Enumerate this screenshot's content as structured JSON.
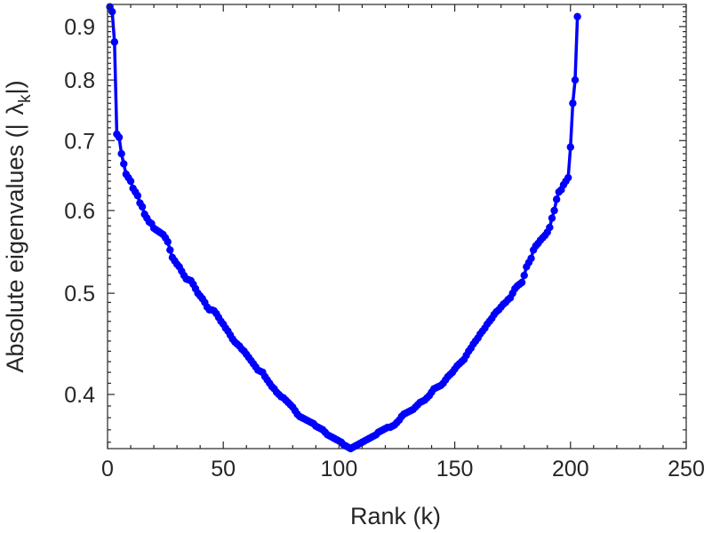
{
  "chart_data": {
    "type": "line",
    "xlabel": "Rank (k)",
    "ylabel_prefix": "Absolute eigenvalues (|",
    "ylabel_symbol": "λ",
    "ylabel_subscript": "k",
    "ylabel_suffix": "|)",
    "x_ticks": [
      "0",
      "50",
      "100",
      "150",
      "200",
      "250"
    ],
    "y_ticks": [
      "0.4",
      "0.5",
      "0.6",
      "0.7",
      "0.8",
      "0.9"
    ],
    "xlim": [
      0,
      250
    ],
    "ylim": [
      0.355,
      0.945
    ],
    "y_scale": "log",
    "grid": false,
    "color": "#0000ff",
    "series": [
      {
        "values": [
          [
            1,
            0.94
          ],
          [
            2,
            0.93
          ],
          [
            3,
            0.87
          ],
          [
            4,
            0.71
          ],
          [
            5,
            0.705
          ],
          [
            6,
            0.68
          ],
          [
            7,
            0.665
          ],
          [
            8,
            0.65
          ],
          [
            9,
            0.645
          ],
          [
            10,
            0.64
          ],
          [
            11,
            0.63
          ],
          [
            12,
            0.625
          ],
          [
            13,
            0.62
          ],
          [
            14,
            0.61
          ],
          [
            15,
            0.605
          ],
          [
            16,
            0.595
          ],
          [
            17,
            0.59
          ],
          [
            18,
            0.585
          ],
          [
            19,
            0.583
          ],
          [
            20,
            0.577
          ],
          [
            21,
            0.575
          ],
          [
            22,
            0.573
          ],
          [
            23,
            0.571
          ],
          [
            24,
            0.569
          ],
          [
            25,
            0.565
          ],
          [
            26,
            0.56
          ],
          [
            27,
            0.55
          ],
          [
            28,
            0.541
          ],
          [
            29,
            0.537
          ],
          [
            30,
            0.533
          ],
          [
            31,
            0.53
          ],
          [
            32,
            0.525
          ],
          [
            33,
            0.52
          ],
          [
            34,
            0.516
          ],
          [
            35,
            0.515
          ],
          [
            36,
            0.514
          ],
          [
            37,
            0.51
          ],
          [
            38,
            0.505
          ],
          [
            39,
            0.5
          ],
          [
            40,
            0.497
          ],
          [
            41,
            0.494
          ],
          [
            42,
            0.49
          ],
          [
            43,
            0.485
          ],
          [
            44,
            0.482
          ],
          [
            45,
            0.482
          ],
          [
            46,
            0.481
          ],
          [
            47,
            0.478
          ],
          [
            48,
            0.474
          ],
          [
            49,
            0.47
          ],
          [
            50,
            0.467
          ],
          [
            51,
            0.463
          ],
          [
            52,
            0.46
          ],
          [
            53,
            0.456
          ],
          [
            54,
            0.452
          ],
          [
            55,
            0.449
          ],
          [
            56,
            0.447
          ],
          [
            57,
            0.445
          ],
          [
            58,
            0.442
          ],
          [
            59,
            0.44
          ],
          [
            60,
            0.437
          ],
          [
            61,
            0.434
          ],
          [
            62,
            0.431
          ],
          [
            63,
            0.428
          ],
          [
            64,
            0.425
          ],
          [
            65,
            0.422
          ],
          [
            66,
            0.421
          ],
          [
            67,
            0.42
          ],
          [
            68,
            0.416
          ],
          [
            69,
            0.413
          ],
          [
            70,
            0.41
          ],
          [
            71,
            0.407
          ],
          [
            72,
            0.405
          ],
          [
            73,
            0.402
          ],
          [
            74,
            0.4
          ],
          [
            75,
            0.398
          ],
          [
            76,
            0.397
          ],
          [
            77,
            0.395
          ],
          [
            78,
            0.393
          ],
          [
            79,
            0.391
          ],
          [
            80,
            0.389
          ],
          [
            81,
            0.386
          ],
          [
            82,
            0.383
          ],
          [
            83,
            0.381
          ],
          [
            84,
            0.38
          ],
          [
            85,
            0.379
          ],
          [
            86,
            0.378
          ],
          [
            87,
            0.377
          ],
          [
            88,
            0.376
          ],
          [
            89,
            0.375
          ],
          [
            90,
            0.373
          ],
          [
            91,
            0.372
          ],
          [
            92,
            0.371
          ],
          [
            93,
            0.37
          ],
          [
            94,
            0.368
          ],
          [
            95,
            0.366
          ],
          [
            96,
            0.365
          ],
          [
            97,
            0.364
          ],
          [
            98,
            0.363
          ],
          [
            99,
            0.362
          ],
          [
            100,
            0.361
          ],
          [
            101,
            0.36
          ],
          [
            102,
            0.358
          ],
          [
            103,
            0.357
          ],
          [
            104,
            0.356
          ],
          [
            105,
            0.355
          ],
          [
            106,
            0.356
          ],
          [
            107,
            0.357
          ],
          [
            108,
            0.358
          ],
          [
            109,
            0.359
          ],
          [
            110,
            0.36
          ],
          [
            111,
            0.361
          ],
          [
            112,
            0.362
          ],
          [
            113,
            0.363
          ],
          [
            114,
            0.364
          ],
          [
            115,
            0.365
          ],
          [
            116,
            0.366
          ],
          [
            117,
            0.368
          ],
          [
            118,
            0.369
          ],
          [
            119,
            0.37
          ],
          [
            120,
            0.371
          ],
          [
            121,
            0.372
          ],
          [
            122,
            0.372
          ],
          [
            123,
            0.373
          ],
          [
            124,
            0.374
          ],
          [
            125,
            0.376
          ],
          [
            126,
            0.378
          ],
          [
            127,
            0.381
          ],
          [
            128,
            0.383
          ],
          [
            129,
            0.384
          ],
          [
            130,
            0.385
          ],
          [
            131,
            0.386
          ],
          [
            132,
            0.387
          ],
          [
            133,
            0.389
          ],
          [
            134,
            0.391
          ],
          [
            135,
            0.393
          ],
          [
            136,
            0.394
          ],
          [
            137,
            0.395
          ],
          [
            138,
            0.397
          ],
          [
            139,
            0.399
          ],
          [
            140,
            0.402
          ],
          [
            141,
            0.405
          ],
          [
            142,
            0.406
          ],
          [
            143,
            0.407
          ],
          [
            144,
            0.408
          ],
          [
            145,
            0.41
          ],
          [
            146,
            0.413
          ],
          [
            147,
            0.416
          ],
          [
            148,
            0.418
          ],
          [
            149,
            0.42
          ],
          [
            150,
            0.423
          ],
          [
            151,
            0.426
          ],
          [
            152,
            0.428
          ],
          [
            153,
            0.43
          ],
          [
            154,
            0.432
          ],
          [
            155,
            0.436
          ],
          [
            156,
            0.44
          ],
          [
            157,
            0.443
          ],
          [
            158,
            0.447
          ],
          [
            159,
            0.45
          ],
          [
            160,
            0.453
          ],
          [
            161,
            0.457
          ],
          [
            162,
            0.46
          ],
          [
            163,
            0.463
          ],
          [
            164,
            0.467
          ],
          [
            165,
            0.47
          ],
          [
            166,
            0.473
          ],
          [
            167,
            0.477
          ],
          [
            168,
            0.48
          ],
          [
            169,
            0.482
          ],
          [
            170,
            0.485
          ],
          [
            171,
            0.488
          ],
          [
            172,
            0.49
          ],
          [
            173,
            0.493
          ],
          [
            174,
            0.495
          ],
          [
            175,
            0.5
          ],
          [
            176,
            0.505
          ],
          [
            177,
            0.508
          ],
          [
            178,
            0.51
          ],
          [
            179,
            0.512
          ],
          [
            180,
            0.52
          ],
          [
            181,
            0.53
          ],
          [
            182,
            0.535
          ],
          [
            183,
            0.54
          ],
          [
            184,
            0.55
          ],
          [
            185,
            0.555
          ],
          [
            186,
            0.558
          ],
          [
            187,
            0.562
          ],
          [
            188,
            0.565
          ],
          [
            189,
            0.568
          ],
          [
            190,
            0.572
          ],
          [
            191,
            0.578
          ],
          [
            192,
            0.59
          ],
          [
            193,
            0.6
          ],
          [
            194,
            0.615
          ],
          [
            195,
            0.625
          ],
          [
            196,
            0.628
          ],
          [
            197,
            0.635
          ],
          [
            198,
            0.64
          ],
          [
            199,
            0.645
          ],
          [
            200,
            0.69
          ],
          [
            201,
            0.76
          ],
          [
            202,
            0.8
          ],
          [
            203,
            0.92
          ]
        ]
      }
    ]
  }
}
